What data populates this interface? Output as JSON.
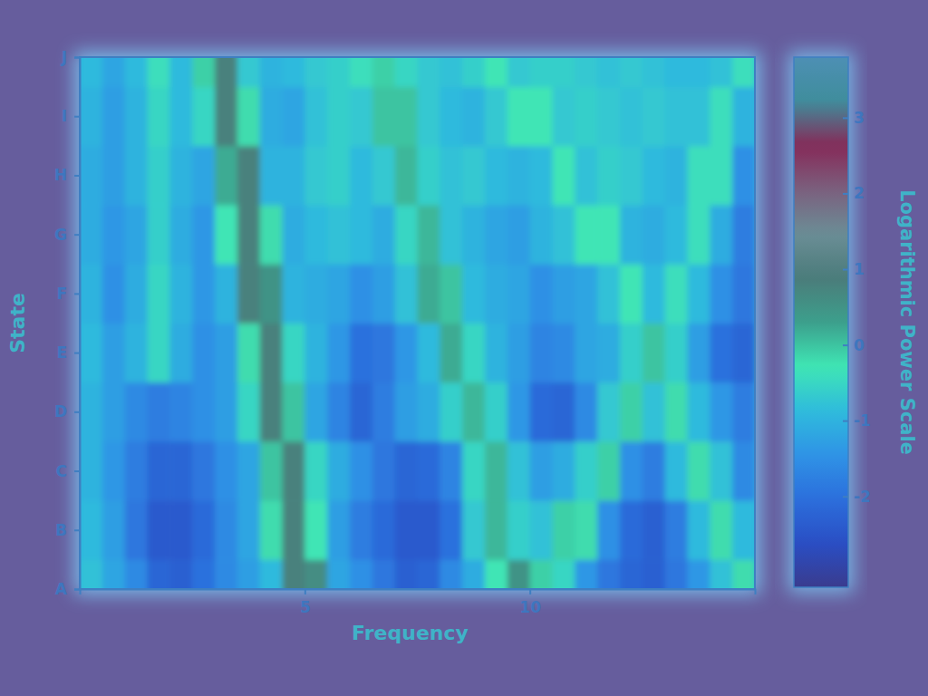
{
  "chart_data": {
    "type": "heatmap",
    "x_label": "Frequency",
    "y_label": "State",
    "x": [
      0.25,
      0.75,
      1.25,
      1.75,
      2.25,
      2.75,
      3.25,
      3.75,
      4.25,
      4.75,
      5.25,
      5.75,
      6.25,
      6.75,
      7.25,
      7.75,
      8.25,
      8.75,
      9.25,
      9.75,
      10.25,
      10.75,
      11.25,
      11.75,
      12.25,
      12.75,
      13.25,
      13.75,
      14.25,
      14.75
    ],
    "categories": [
      "A",
      "B",
      "C",
      "D",
      "E",
      "F",
      "G",
      "H",
      "I",
      "J"
    ],
    "xlim": [
      0,
      15
    ],
    "xticks": [
      5,
      10
    ],
    "values": [
      [
        -0.8,
        -1.2,
        -1.6,
        -2.2,
        -2.3,
        -2.0,
        -1.6,
        -1.3,
        -0.9,
        0.8,
        0.6,
        -1.2,
        -1.5,
        -1.9,
        -2.3,
        -2.2,
        -1.6,
        -1.1,
        -0.3,
        0.5,
        -0.1,
        -0.5,
        -1.4,
        -1.9,
        -2.2,
        -2.3,
        -1.9,
        -1.4,
        -0.8,
        -0.2
      ],
      [
        -0.9,
        -1.3,
        -1.9,
        -2.4,
        -2.4,
        -2.1,
        -1.6,
        -1.2,
        -0.2,
        0.8,
        -0.3,
        -1.3,
        -1.8,
        -2.1,
        -2.4,
        -2.4,
        -2.0,
        -0.7,
        0.1,
        -0.6,
        -0.8,
        -0.1,
        -0.2,
        -1.5,
        -2.1,
        -2.3,
        -1.8,
        -0.9,
        -0.2,
        -0.9
      ],
      [
        -1.0,
        -1.4,
        -1.8,
        -2.2,
        -2.2,
        -1.9,
        -1.5,
        -1.2,
        0.0,
        0.8,
        -0.5,
        -1.1,
        -1.5,
        -1.9,
        -2.2,
        -2.1,
        -1.7,
        -0.5,
        0.1,
        -0.8,
        -1.3,
        -1.1,
        -0.6,
        -0.1,
        -1.5,
        -1.8,
        -0.9,
        -0.2,
        -0.8,
        -1.6
      ],
      [
        -1.0,
        -1.3,
        -1.6,
        -1.8,
        -1.7,
        -1.5,
        -1.3,
        -0.5,
        0.8,
        0.0,
        -1.2,
        -1.7,
        -2.2,
        -1.8,
        -1.3,
        -1.1,
        -0.6,
        0.1,
        -0.6,
        -1.4,
        -2.1,
        -2.2,
        -1.6,
        -0.7,
        -0.1,
        -0.8,
        -0.2,
        -0.9,
        -1.4,
        -1.8
      ],
      [
        -0.9,
        -1.3,
        -1.0,
        -0.5,
        -1.1,
        -1.5,
        -1.3,
        -0.2,
        0.8,
        -0.5,
        -1.0,
        -1.4,
        -2.0,
        -1.9,
        -1.4,
        -0.9,
        0.2,
        -0.5,
        -1.0,
        -1.3,
        -1.7,
        -1.6,
        -1.2,
        -1.1,
        -0.6,
        0.0,
        -0.6,
        -1.3,
        -2.0,
        -2.2
      ],
      [
        -1.0,
        -1.5,
        -1.1,
        -0.5,
        -1.0,
        -1.4,
        -1.0,
        0.8,
        0.5,
        -1.0,
        -1.1,
        -1.2,
        -1.5,
        -1.3,
        -0.8,
        0.2,
        0.0,
        -0.9,
        -1.1,
        -1.2,
        -1.5,
        -1.3,
        -1.2,
        -0.8,
        -0.3,
        -0.9,
        -0.4,
        -0.9,
        -1.5,
        -1.9
      ],
      [
        -1.1,
        -1.4,
        -1.2,
        -0.6,
        -1.1,
        -1.4,
        -0.3,
        0.8,
        -0.2,
        -1.1,
        -0.9,
        -0.8,
        -0.9,
        -1.1,
        -0.5,
        0.1,
        -0.8,
        -1.0,
        -1.2,
        -1.3,
        -1.0,
        -0.8,
        -0.3,
        -0.3,
        -1.0,
        -1.1,
        -0.9,
        -0.4,
        -1.1,
        -1.8
      ],
      [
        -1.1,
        -1.3,
        -1.0,
        -0.6,
        -1.0,
        -1.2,
        0.2,
        0.8,
        -1.0,
        -1.0,
        -0.7,
        -0.6,
        -0.9,
        -0.7,
        0.1,
        -0.6,
        -0.8,
        -0.7,
        -0.9,
        -1.0,
        -0.9,
        -0.3,
        -0.8,
        -0.6,
        -0.7,
        -0.9,
        -1.0,
        -0.4,
        -0.4,
        -1.5
      ],
      [
        -1.0,
        -1.3,
        -1.0,
        -0.5,
        -0.9,
        -0.5,
        0.8,
        -0.2,
        -1.1,
        -1.2,
        -0.8,
        -0.6,
        -0.7,
        0.0,
        0.0,
        -0.7,
        -0.9,
        -1.0,
        -0.7,
        -0.3,
        -0.3,
        -0.7,
        -0.6,
        -0.7,
        -0.8,
        -0.7,
        -0.8,
        -0.8,
        -0.4,
        -1.0
      ],
      [
        -0.9,
        -1.2,
        -0.9,
        -0.4,
        -0.9,
        -0.1,
        0.8,
        -0.7,
        -1.0,
        -0.9,
        -0.7,
        -0.6,
        -0.4,
        -0.1,
        -0.5,
        -0.7,
        -0.8,
        -0.6,
        -0.3,
        -0.7,
        -0.6,
        -0.6,
        -0.7,
        -0.8,
        -0.7,
        -0.8,
        -0.9,
        -0.9,
        -0.8,
        -0.4
      ]
    ],
    "colorbar": {
      "label": "Logarithmic Power Scale",
      "range": [
        -3.2,
        3.8
      ],
      "ticks": [
        -2,
        -1,
        0,
        1,
        2,
        3
      ]
    }
  }
}
